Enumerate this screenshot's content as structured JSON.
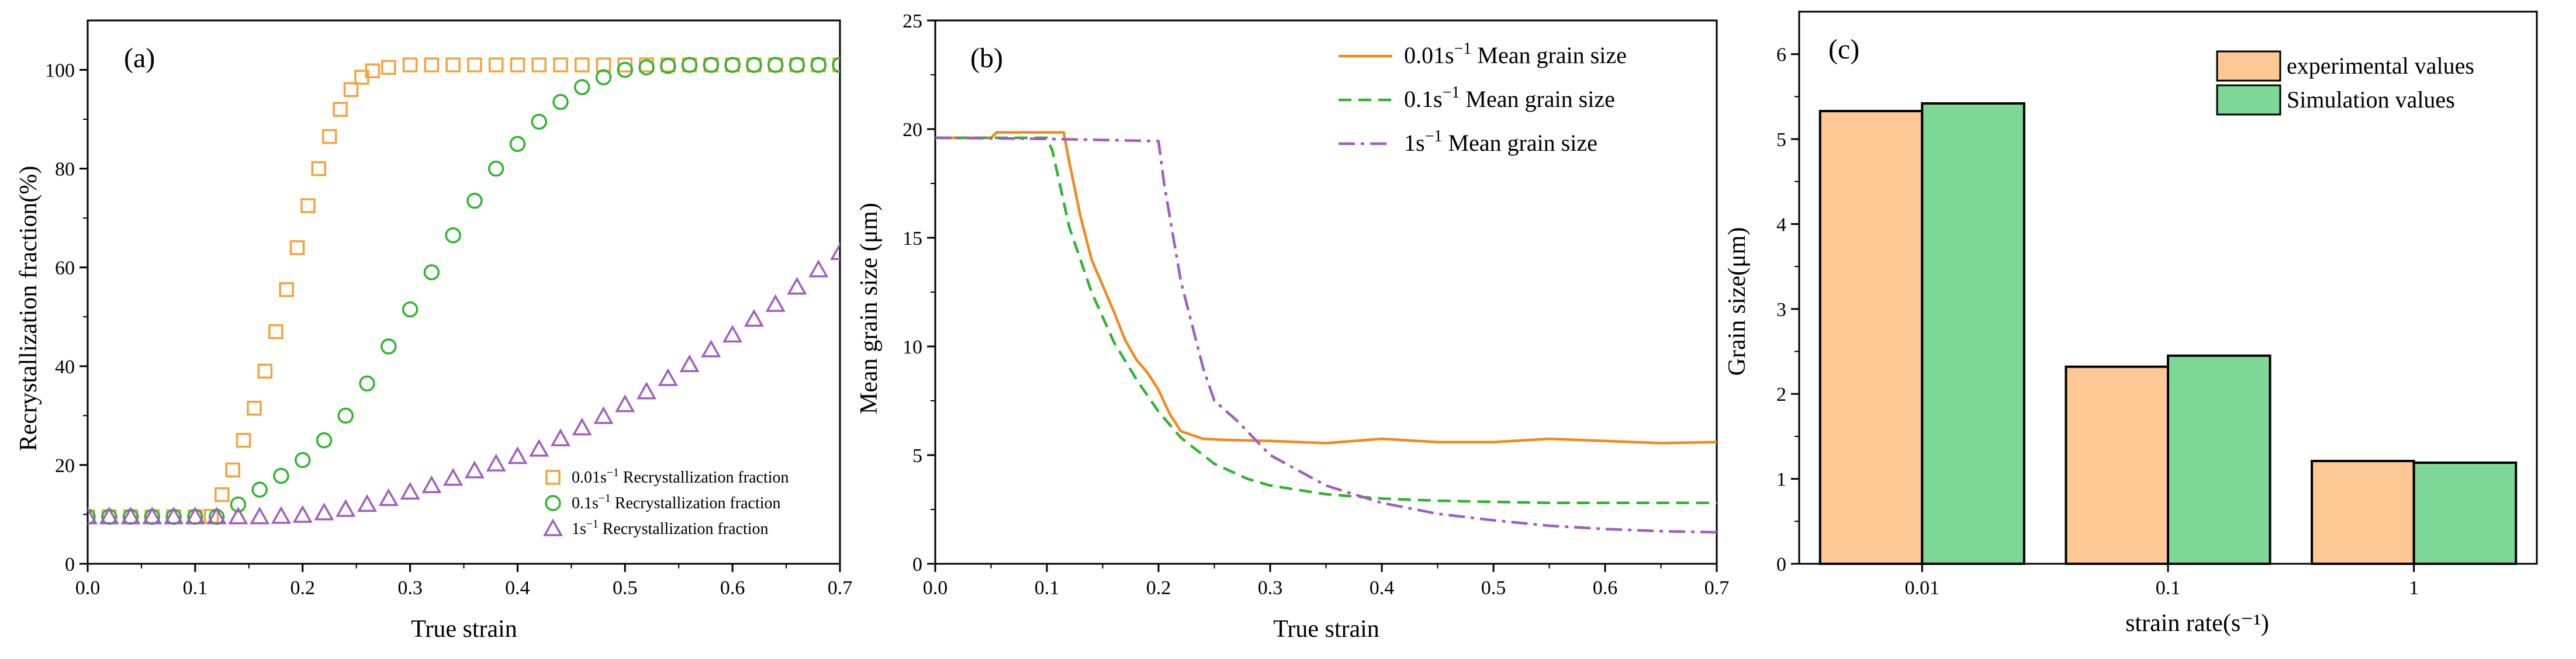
{
  "chart_data": [
    {
      "type": "scatter",
      "panel_label": "(a)",
      "xlabel": "True strain",
      "ylabel": "Recrystallization fraction(%)",
      "xlim": [
        0,
        0.7
      ],
      "ylim": [
        0,
        110
      ],
      "xticks": [
        "0.0",
        "0.1",
        "0.2",
        "0.3",
        "0.4",
        "0.5",
        "0.6",
        "0.7"
      ],
      "yticks": [
        "0",
        "20",
        "40",
        "60",
        "80",
        "100"
      ],
      "legend_position": "bottom-right",
      "series": [
        {
          "name": "0.01s⁻¹ Recrystallization fraction",
          "marker": "square",
          "color": "#F5A23C",
          "x": [
            0.0,
            0.02,
            0.04,
            0.06,
            0.08,
            0.1,
            0.115,
            0.125,
            0.135,
            0.145,
            0.155,
            0.165,
            0.175,
            0.185,
            0.195,
            0.205,
            0.215,
            0.225,
            0.235,
            0.245,
            0.255,
            0.265,
            0.28,
            0.3,
            0.32,
            0.34,
            0.36,
            0.38,
            0.4,
            0.42,
            0.44,
            0.46,
            0.48,
            0.5,
            0.52,
            0.54,
            0.56,
            0.58,
            0.6,
            0.62,
            0.64,
            0.66,
            0.68,
            0.7
          ],
          "y": [
            9.5,
            9.5,
            9.5,
            9.5,
            9.5,
            9.5,
            9.6,
            14,
            19,
            25,
            31.5,
            39,
            47,
            55.5,
            64,
            72.5,
            80,
            86.5,
            92,
            96,
            98.5,
            99.8,
            100.5,
            101,
            101,
            101,
            101,
            101,
            101,
            101,
            101,
            101,
            101,
            101,
            101,
            101,
            101,
            101,
            101,
            101,
            101,
            101,
            101,
            101
          ]
        },
        {
          "name": "0.1s⁻¹ Recrystallization fraction",
          "marker": "circle",
          "color": "#2DB52D",
          "x": [
            0.0,
            0.02,
            0.04,
            0.06,
            0.08,
            0.1,
            0.12,
            0.14,
            0.16,
            0.18,
            0.2,
            0.22,
            0.24,
            0.26,
            0.28,
            0.3,
            0.32,
            0.34,
            0.36,
            0.38,
            0.4,
            0.42,
            0.44,
            0.46,
            0.48,
            0.5,
            0.52,
            0.54,
            0.56,
            0.58,
            0.6,
            0.62,
            0.64,
            0.66,
            0.68,
            0.7
          ],
          "y": [
            9.5,
            9.5,
            9.5,
            9.5,
            9.5,
            9.5,
            9.5,
            12,
            15,
            17.8,
            21,
            25,
            30,
            36.5,
            44,
            51.5,
            59,
            66.5,
            73.5,
            80,
            85,
            89.5,
            93.5,
            96.5,
            98.5,
            100,
            100.5,
            100.8,
            101,
            101,
            101,
            101,
            101,
            101,
            101,
            101
          ]
        },
        {
          "name": "1s⁻¹ Recrystallization fraction",
          "marker": "triangle",
          "color": "#A25CC0",
          "x": [
            0.0,
            0.02,
            0.04,
            0.06,
            0.08,
            0.1,
            0.12,
            0.14,
            0.16,
            0.18,
            0.2,
            0.22,
            0.24,
            0.26,
            0.28,
            0.3,
            0.32,
            0.34,
            0.36,
            0.38,
            0.4,
            0.42,
            0.44,
            0.46,
            0.48,
            0.5,
            0.52,
            0.54,
            0.56,
            0.58,
            0.6,
            0.62,
            0.64,
            0.66,
            0.68,
            0.7
          ],
          "y": [
            9.5,
            9.5,
            9.5,
            9.5,
            9.5,
            9.5,
            9.5,
            9.5,
            9.5,
            9.6,
            9.8,
            10.3,
            11,
            12,
            13.2,
            14.5,
            15.8,
            17.3,
            18.8,
            20.2,
            21.7,
            23.2,
            25.3,
            27.5,
            29.8,
            32.2,
            34.8,
            37.5,
            40.3,
            43.3,
            46.3,
            49.5,
            52.5,
            56,
            59.5,
            63
          ]
        }
      ]
    },
    {
      "type": "line",
      "panel_label": "(b)",
      "xlabel": "True strain",
      "ylabel": "Mean grain size (μm)",
      "xlim": [
        0,
        0.7
      ],
      "ylim": [
        0,
        25
      ],
      "xticks": [
        "0.0",
        "0.1",
        "0.2",
        "0.3",
        "0.4",
        "0.5",
        "0.6",
        "0.7"
      ],
      "yticks": [
        "0",
        "5",
        "10",
        "15",
        "20",
        "25"
      ],
      "legend_position": "top-right",
      "series": [
        {
          "name": "0.01s⁻¹ Mean grain size",
          "style": "solid",
          "color": "#F28A1A",
          "x": [
            0.0,
            0.05,
            0.055,
            0.115,
            0.12,
            0.13,
            0.14,
            0.15,
            0.16,
            0.17,
            0.18,
            0.19,
            0.2,
            0.21,
            0.22,
            0.24,
            0.26,
            0.3,
            0.35,
            0.4,
            0.45,
            0.5,
            0.55,
            0.6,
            0.65,
            0.7
          ],
          "y": [
            19.6,
            19.6,
            19.85,
            19.85,
            18.5,
            16.0,
            14.0,
            12.8,
            11.6,
            10.3,
            9.4,
            8.8,
            8.0,
            6.9,
            6.1,
            5.75,
            5.7,
            5.65,
            5.55,
            5.75,
            5.6,
            5.6,
            5.75,
            5.65,
            5.55,
            5.6
          ]
        },
        {
          "name": "0.1s⁻¹ Mean grain size",
          "style": "dashed",
          "color": "#2DB52D",
          "x": [
            0.0,
            0.1,
            0.105,
            0.12,
            0.14,
            0.16,
            0.18,
            0.2,
            0.22,
            0.25,
            0.28,
            0.3,
            0.35,
            0.4,
            0.45,
            0.5,
            0.55,
            0.6,
            0.65,
            0.7
          ],
          "y": [
            19.6,
            19.6,
            19.0,
            15.5,
            12.5,
            10.2,
            8.5,
            7.0,
            5.8,
            4.6,
            3.9,
            3.6,
            3.2,
            3.0,
            2.9,
            2.85,
            2.8,
            2.8,
            2.8,
            2.8
          ]
        },
        {
          "name": "1s⁻¹ Mean grain size",
          "style": "dash-dot",
          "color": "#A25CC0",
          "x": [
            0.0,
            0.1,
            0.2,
            0.205,
            0.22,
            0.24,
            0.25,
            0.27,
            0.3,
            0.35,
            0.4,
            0.45,
            0.5,
            0.55,
            0.6,
            0.65,
            0.7
          ],
          "y": [
            19.6,
            19.55,
            19.45,
            17.5,
            13.0,
            9.0,
            7.5,
            6.6,
            5.0,
            3.6,
            2.8,
            2.3,
            2.0,
            1.75,
            1.6,
            1.5,
            1.45
          ]
        }
      ]
    },
    {
      "type": "bar",
      "panel_label": "(c)",
      "xlabel": "strain rate(s⁻¹)",
      "ylabel": "Grain size(μm)",
      "ylim": [
        0,
        6.5
      ],
      "yticks": [
        "0",
        "1",
        "2",
        "3",
        "4",
        "5",
        "6"
      ],
      "categories": [
        "0.01",
        "0.1",
        "1"
      ],
      "legend_position": "top-right",
      "series": [
        {
          "name": "experimental values",
          "color": "#FDC893",
          "values": [
            5.33,
            2.32,
            1.21
          ]
        },
        {
          "name": "Simulation values",
          "color": "#7DD896",
          "values": [
            5.42,
            2.45,
            1.19
          ]
        }
      ]
    }
  ]
}
